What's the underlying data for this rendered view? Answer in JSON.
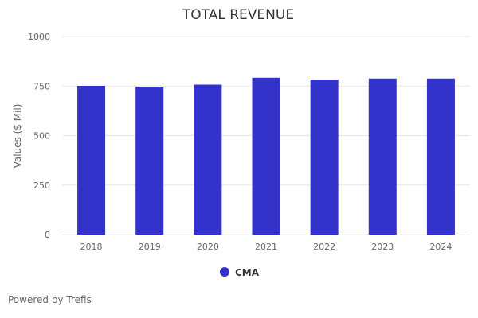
{
  "chart_data": {
    "type": "bar",
    "title": "TOTAL REVENUE",
    "xlabel": "",
    "ylabel": "Values ($ Mil)",
    "categories": [
      "2018",
      "2019",
      "2020",
      "2021",
      "2022",
      "2023",
      "2024"
    ],
    "series": [
      {
        "name": "CMA",
        "color": "#3333cc",
        "values": [
          751,
          747,
          757,
          792,
          783,
          788,
          788
        ]
      }
    ],
    "ylim": [
      0,
      1000
    ],
    "yticks": [
      0,
      250,
      500,
      750,
      1000
    ],
    "grid": true,
    "legend": "bottom-center"
  },
  "credit": "Powered by Trefis"
}
